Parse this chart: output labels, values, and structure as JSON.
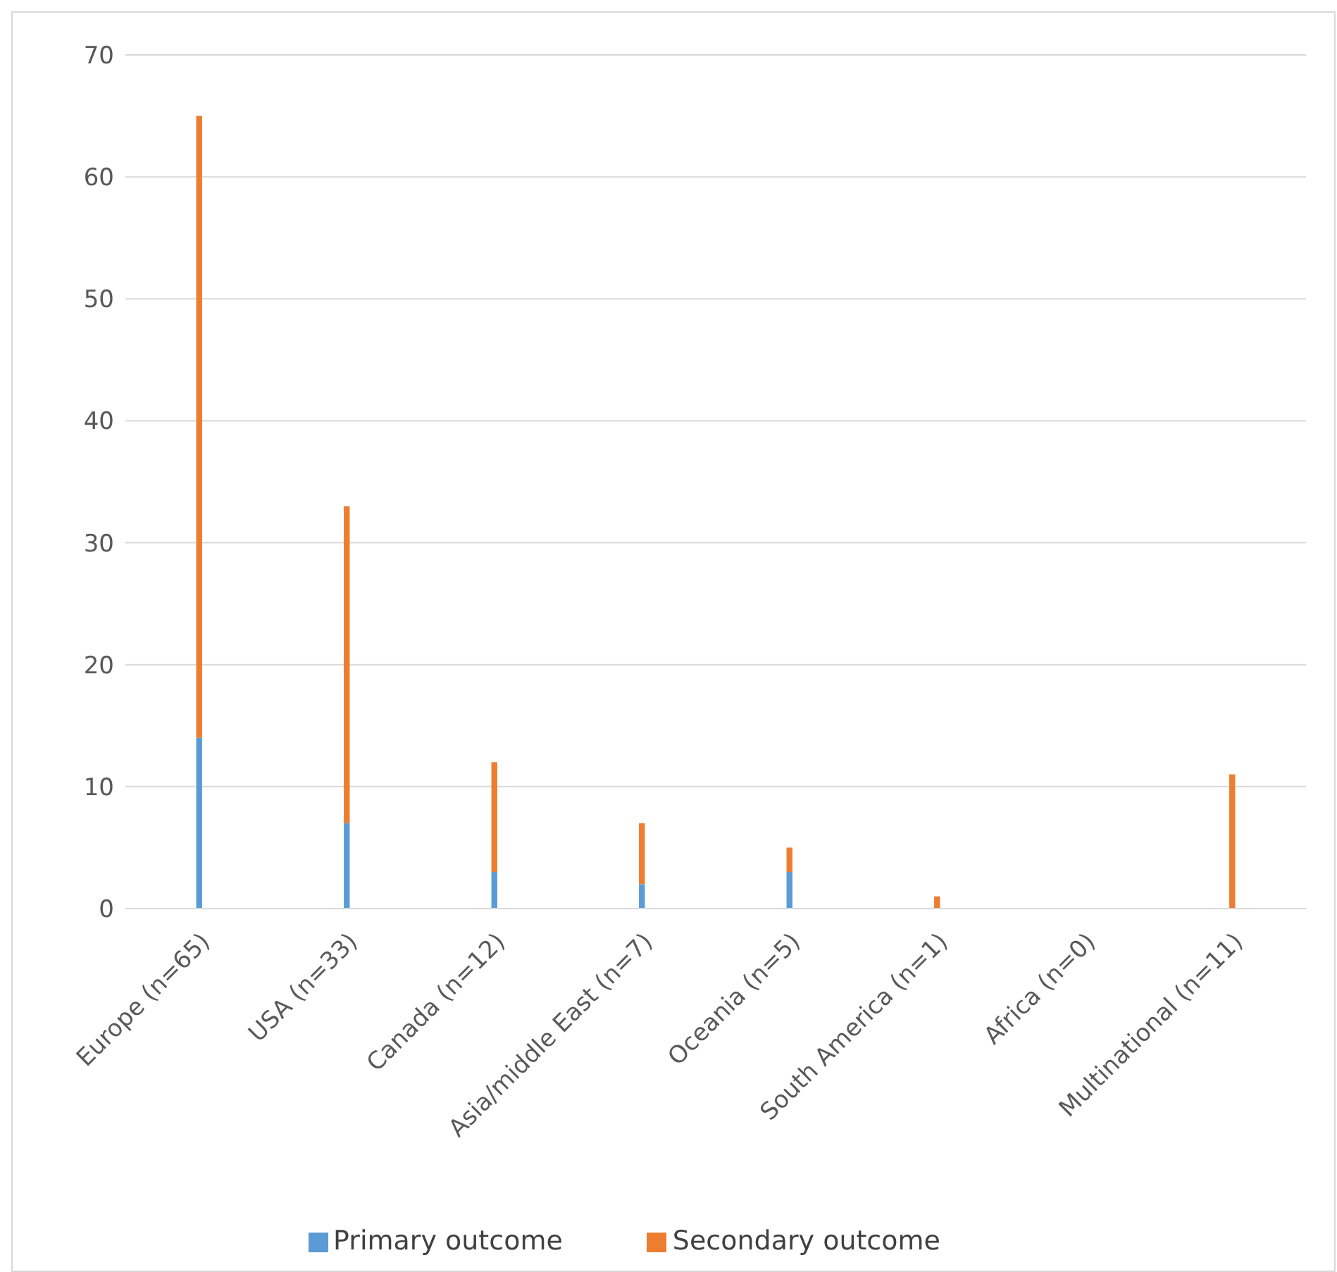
{
  "chart_data": {
    "type": "bar",
    "stacked": true,
    "categories": [
      "Europe (n=65)",
      "USA (n=33)",
      "Canada (n=12)",
      "Asia/middle East (n=7)",
      "Oceania (n=5)",
      "South America (n=1)",
      "Africa (n=0)",
      "Multinational (n=11)"
    ],
    "series": [
      {
        "name": "Primary outcome",
        "color": "#5b9bd5",
        "values": [
          14,
          7,
          3,
          2,
          3,
          0,
          0,
          0
        ]
      },
      {
        "name": "Secondary outcome",
        "color": "#ed7d31",
        "values": [
          51,
          26,
          9,
          5,
          2,
          1,
          0,
          11
        ]
      }
    ],
    "ylim": [
      0,
      70
    ],
    "yticks": [
      0,
      10,
      20,
      30,
      40,
      50,
      60,
      70
    ],
    "grid": "y",
    "legend": "bottom"
  }
}
